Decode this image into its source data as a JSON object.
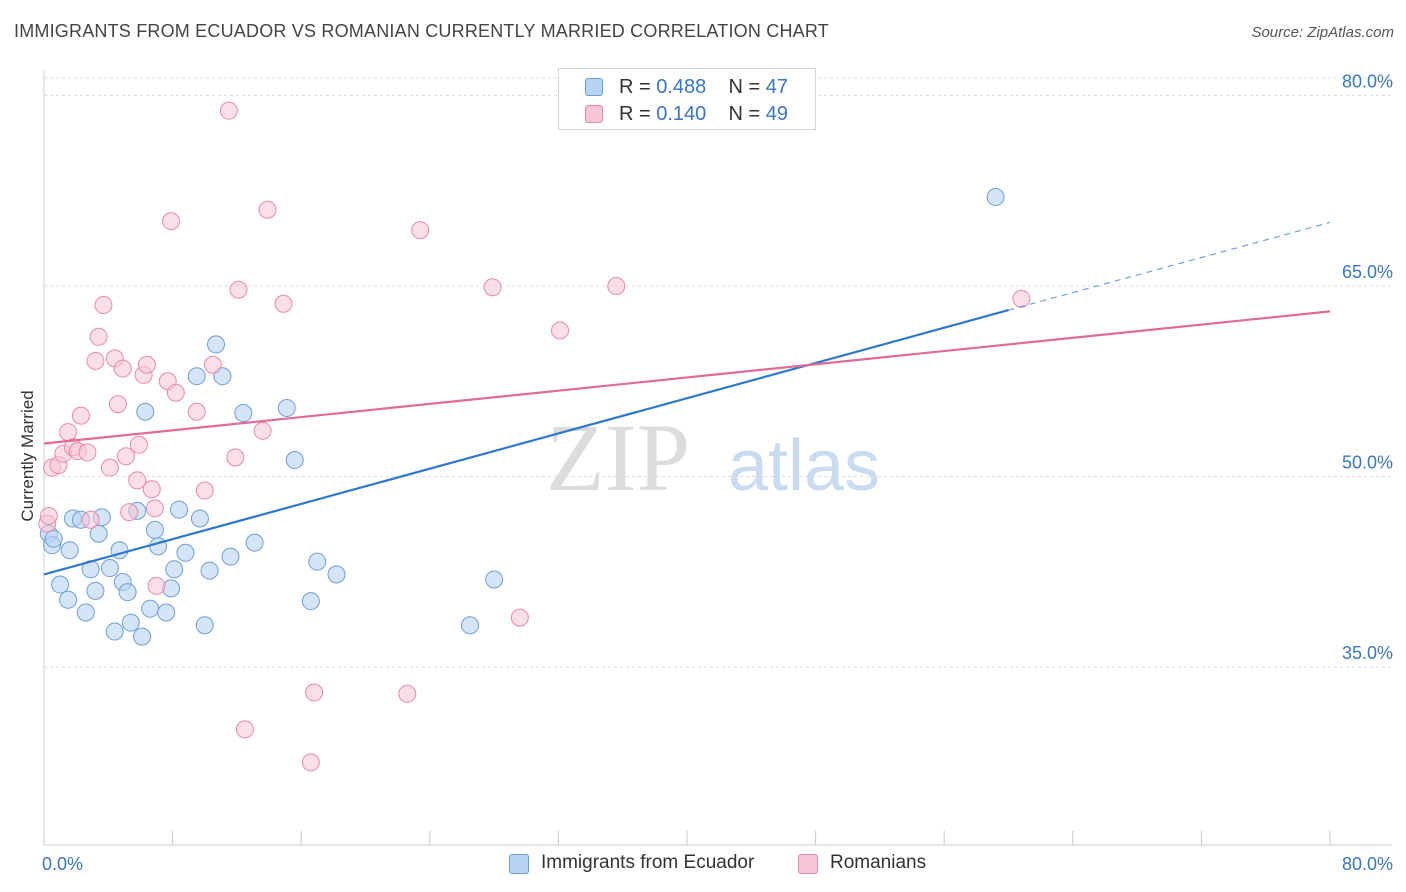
{
  "header": {
    "title": "IMMIGRANTS FROM ECUADOR VS ROMANIAN CURRENTLY MARRIED CORRELATION CHART",
    "source": "Source: ZipAtlas.com"
  },
  "watermark": {
    "zip": "ZIP",
    "atlas": "atlas"
  },
  "legend": {
    "ecuador": {
      "r_label": "R =",
      "r_value": "0.488",
      "n_label": "N =",
      "n_value": "47"
    },
    "romanian": {
      "r_label": "R =",
      "r_value": "0.140",
      "n_label": "N =",
      "n_value": "49"
    }
  },
  "colors": {
    "ecuador_fill": "#b8d3f1",
    "ecuador_stroke": "#6e9fd8",
    "ecuador_line": "#2f78cf",
    "romanian_fill": "#f8c5d6",
    "romanian_stroke": "#e98aab",
    "romanian_line": "#e06b97",
    "tick_label": "#3a76c4",
    "grid": "#dcdcdc"
  },
  "chart_data": {
    "type": "scatter",
    "title": "IMMIGRANTS FROM ECUADOR VS ROMANIAN CURRENTLY MARRIED CORRELATION CHART",
    "xlabel": "",
    "ylabel": "Currently Married",
    "xlim": [
      0,
      80
    ],
    "ylim": [
      21,
      82
    ],
    "x_tick_labels": [
      "0.0%",
      "80.0%"
    ],
    "y_ticks": [
      35,
      50,
      65,
      80
    ],
    "y_tick_labels": [
      "35.0%",
      "50.0%",
      "65.0%",
      "80.0%"
    ],
    "grid": true,
    "legend_position": "bottom",
    "series": [
      {
        "name": "Immigrants from Ecuador",
        "r": 0.488,
        "n": 47,
        "trend": {
          "x0": 0,
          "y0": 42.3,
          "x1": 60,
          "y1": 63.1,
          "dashed_to_x": 80,
          "dashed_to_y": 70.0
        },
        "points": [
          [
            0.3,
            45.5
          ],
          [
            0.5,
            44.6
          ],
          [
            0.6,
            45.1
          ],
          [
            1.0,
            41.5
          ],
          [
            1.5,
            40.3
          ],
          [
            1.6,
            44.2
          ],
          [
            1.8,
            46.7
          ],
          [
            2.3,
            46.6
          ],
          [
            2.6,
            39.3
          ],
          [
            2.9,
            42.7
          ],
          [
            3.2,
            41.0
          ],
          [
            3.4,
            45.5
          ],
          [
            3.6,
            46.8
          ],
          [
            4.1,
            42.8
          ],
          [
            4.4,
            37.8
          ],
          [
            4.7,
            44.2
          ],
          [
            4.9,
            41.7
          ],
          [
            5.2,
            40.9
          ],
          [
            5.4,
            38.5
          ],
          [
            5.8,
            47.3
          ],
          [
            6.1,
            37.4
          ],
          [
            6.3,
            55.1
          ],
          [
            6.6,
            39.6
          ],
          [
            6.9,
            45.8
          ],
          [
            7.1,
            44.5
          ],
          [
            7.6,
            39.3
          ],
          [
            7.9,
            41.2
          ],
          [
            8.1,
            42.7
          ],
          [
            8.4,
            47.4
          ],
          [
            8.8,
            44.0
          ],
          [
            9.5,
            57.9
          ],
          [
            9.7,
            46.7
          ],
          [
            10.0,
            38.3
          ],
          [
            10.3,
            42.6
          ],
          [
            10.7,
            60.4
          ],
          [
            11.1,
            57.9
          ],
          [
            11.6,
            43.7
          ],
          [
            12.4,
            55.0
          ],
          [
            13.1,
            44.8
          ],
          [
            15.1,
            55.4
          ],
          [
            15.6,
            51.3
          ],
          [
            16.6,
            40.2
          ],
          [
            17.0,
            43.3
          ],
          [
            18.2,
            42.3
          ],
          [
            26.5,
            38.3
          ],
          [
            28.0,
            41.9
          ],
          [
            59.2,
            72.0
          ]
        ]
      },
      {
        "name": "Romanians",
        "r": 0.14,
        "n": 49,
        "trend": {
          "x0": 0,
          "y0": 52.6,
          "x1": 80,
          "y1": 63.0
        },
        "points": [
          [
            0.2,
            46.3
          ],
          [
            0.3,
            46.9
          ],
          [
            0.5,
            50.7
          ],
          [
            0.9,
            50.9
          ],
          [
            1.2,
            51.8
          ],
          [
            1.5,
            53.5
          ],
          [
            1.8,
            52.3
          ],
          [
            2.1,
            52.0
          ],
          [
            2.3,
            54.8
          ],
          [
            2.7,
            51.9
          ],
          [
            2.9,
            46.6
          ],
          [
            3.2,
            59.1
          ],
          [
            3.4,
            61.0
          ],
          [
            3.7,
            63.5
          ],
          [
            4.1,
            50.7
          ],
          [
            4.4,
            59.3
          ],
          [
            4.6,
            55.7
          ],
          [
            4.9,
            58.5
          ],
          [
            5.1,
            51.6
          ],
          [
            5.3,
            47.2
          ],
          [
            5.8,
            49.7
          ],
          [
            5.9,
            52.5
          ],
          [
            6.2,
            58.0
          ],
          [
            6.4,
            58.8
          ],
          [
            6.7,
            49.0
          ],
          [
            6.9,
            47.5
          ],
          [
            7.0,
            41.4
          ],
          [
            7.7,
            57.5
          ],
          [
            7.9,
            70.1
          ],
          [
            8.2,
            56.6
          ],
          [
            9.5,
            55.1
          ],
          [
            10.0,
            48.9
          ],
          [
            10.5,
            58.8
          ],
          [
            11.5,
            78.8
          ],
          [
            11.9,
            51.5
          ],
          [
            12.1,
            64.7
          ],
          [
            12.5,
            30.1
          ],
          [
            13.6,
            53.6
          ],
          [
            13.9,
            71.0
          ],
          [
            14.9,
            63.6
          ],
          [
            16.6,
            27.5
          ],
          [
            16.8,
            33.0
          ],
          [
            22.6,
            32.9
          ],
          [
            23.4,
            69.4
          ],
          [
            27.9,
            64.9
          ],
          [
            29.6,
            38.9
          ],
          [
            32.1,
            61.5
          ],
          [
            35.6,
            65.0
          ],
          [
            60.8,
            64.0
          ]
        ]
      }
    ]
  },
  "bottom_legend": {
    "ecuador_label": "Immigrants from Ecuador",
    "romanian_label": "Romanians"
  }
}
